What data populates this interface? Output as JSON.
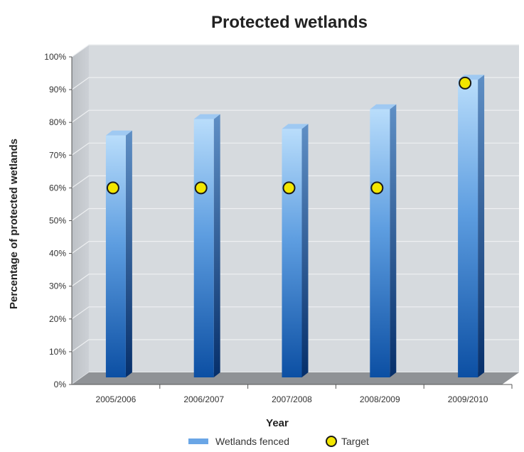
{
  "chart_data": {
    "type": "bar",
    "title": "Protected wetlands",
    "xlabel": "Year",
    "ylabel": "Percentage of protected wetlands",
    "categories": [
      "2005/2006",
      "2006/2007",
      "2007/2008",
      "2008/2009",
      "2009/2010"
    ],
    "series": [
      {
        "name": "Wetlands fenced",
        "kind": "bar",
        "values": [
          76,
          81,
          78,
          84,
          93
        ],
        "color": "#2d6fc4"
      },
      {
        "name": "Target",
        "kind": "marker",
        "values": [
          60,
          60,
          60,
          60,
          92
        ],
        "color": "#f2e600"
      }
    ],
    "ylim": [
      0,
      100
    ],
    "yticks": [
      0,
      10,
      20,
      30,
      40,
      50,
      60,
      70,
      80,
      90,
      100
    ],
    "ytick_suffix": "%",
    "grid": true,
    "legend": "bottom",
    "style": "3d"
  }
}
